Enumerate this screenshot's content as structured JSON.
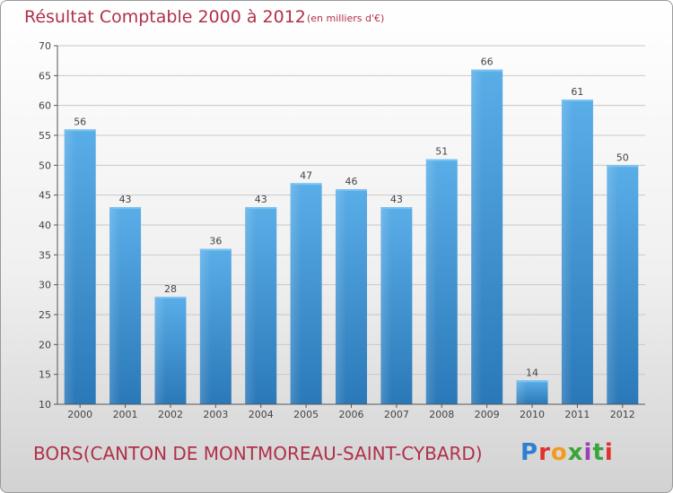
{
  "header": {
    "title": "Résultat Comptable 2000 à 2012",
    "unit": "(en milliers d'€)"
  },
  "footer": {
    "commune": "BORS(CANTON DE MONTMOREAU-SAINT-CYBARD)",
    "logo": "Proxiti"
  },
  "colors": {
    "title": "#b0304a",
    "bar_light": "#5aaee8",
    "bar_dark": "#2a78b8",
    "grid": "#c8c8c8"
  },
  "chart_data": {
    "type": "bar",
    "title": "Résultat Comptable 2000 à 2012",
    "subtitle": "(en milliers d'€)",
    "xlabel": "",
    "ylabel": "",
    "categories": [
      "2000",
      "2001",
      "2002",
      "2003",
      "2004",
      "2005",
      "2006",
      "2007",
      "2008",
      "2009",
      "2010",
      "2011",
      "2012"
    ],
    "values": [
      56,
      43,
      28,
      36,
      43,
      47,
      46,
      43,
      51,
      66,
      14,
      61,
      50
    ],
    "ylim": [
      10,
      70
    ],
    "yticks": [
      10,
      15,
      20,
      25,
      30,
      35,
      40,
      45,
      50,
      55,
      60,
      65,
      70
    ],
    "grid": true,
    "data_labels": true
  }
}
